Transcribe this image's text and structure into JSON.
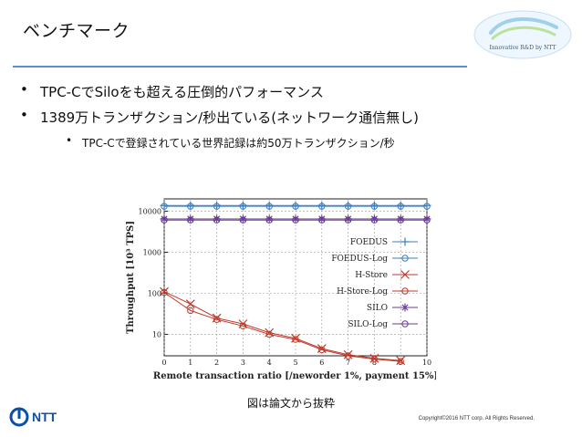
{
  "slide": {
    "title": "ベンチマーク",
    "bullets": [
      "TPC-CでSiloをも超える圧倒的パフォーマンス",
      "1389万トランザクション/秒出ている(ネットワーク通信無し)"
    ],
    "sub_bullets": [
      "TPC-Cで登録されている世界記録は約50万トランザクション/秒"
    ],
    "caption": "図は論文から抜粋",
    "copyright": "Copyright©2016 NTT corp. All Rights Reserved.",
    "footer_brand": "NTT",
    "logo_text": "Innovative R&D by NTT",
    "colors": {
      "rule": "#5a8fd0",
      "ntt_blue": "#0a4fa8"
    }
  },
  "chart_data": {
    "type": "line",
    "xlabel": "Remote transaction ratio [/neworder 1%, payment 15%]",
    "ylabel": "Throughput [10³ TPS]",
    "log_y": true,
    "ylim": [
      3,
      20000
    ],
    "xlim": [
      0,
      10
    ],
    "x_ticks": [
      "0",
      "1",
      "2",
      "3",
      "4",
      "5",
      "6",
      "7",
      "8",
      "9",
      "10"
    ],
    "y_ticks": [
      "10",
      "100",
      "1000",
      "10000"
    ],
    "legend_position": "right",
    "x": [
      0,
      1,
      2,
      3,
      4,
      5,
      6,
      7,
      8,
      9,
      10
    ],
    "series": [
      {
        "name": "FOEDUS",
        "marker": "plus",
        "color": "#3a7fc0",
        "values": [
          13800,
          13800,
          13800,
          13800,
          13800,
          13800,
          13800,
          13800,
          13800,
          13800,
          13800
        ]
      },
      {
        "name": "FOEDUS-Log",
        "marker": "circle",
        "color": "#3a7fc0",
        "values": [
          13200,
          13200,
          13200,
          13200,
          13200,
          13200,
          13200,
          13200,
          13200,
          13200,
          13200
        ]
      },
      {
        "name": "H-Store",
        "marker": "cross",
        "color": "#c0392b",
        "values": [
          110,
          55,
          25,
          18,
          11,
          8,
          4.5,
          3.2,
          2.6,
          2.3,
          null
        ]
      },
      {
        "name": "H-Store-Log",
        "marker": "circle",
        "color": "#c0392b",
        "values": [
          105,
          38,
          23,
          16,
          10,
          7.5,
          4.2,
          3.0,
          2.5,
          2.2,
          null
        ]
      },
      {
        "name": "SILO",
        "marker": "star",
        "color": "#6a3a9a",
        "values": [
          6500,
          6500,
          6500,
          6500,
          6500,
          6500,
          6500,
          6500,
          6500,
          6500,
          6500
        ]
      },
      {
        "name": "SILO-Log",
        "marker": "circle",
        "color": "#6a3a9a",
        "values": [
          6100,
          6100,
          6100,
          6100,
          6100,
          6100,
          6100,
          6100,
          6100,
          6100,
          6100
        ]
      }
    ]
  }
}
